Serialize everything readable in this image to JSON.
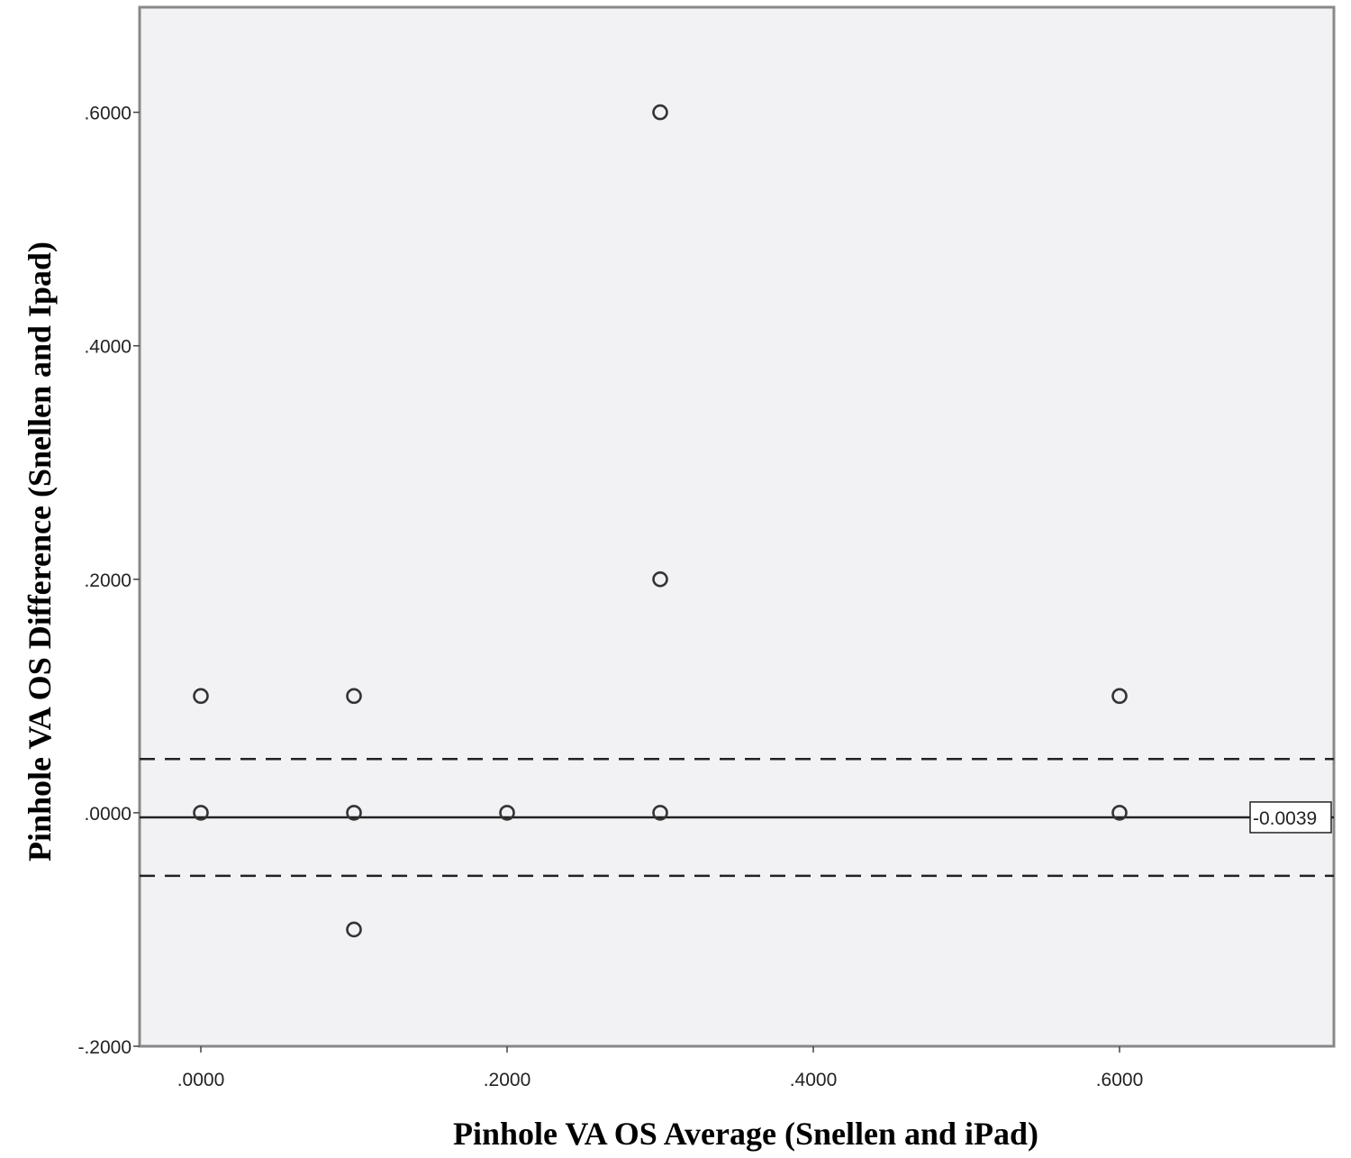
{
  "chart_data": {
    "type": "scatter",
    "title": "",
    "xlabel": "Pinhole VA OS Average (Snellen and iPad)",
    "ylabel": "Pinhole VA OS Difference (Snellen and Ipad)",
    "xlim": [
      -0.04,
      0.74
    ],
    "ylim": [
      -0.2,
      0.69
    ],
    "x_ticks": [
      0.0,
      0.2,
      0.4,
      0.6
    ],
    "x_tick_labels": [
      ".0000",
      ".2000",
      ".4000",
      ".6000"
    ],
    "y_ticks": [
      -0.2,
      0.0,
      0.2,
      0.4,
      0.6
    ],
    "y_tick_labels": [
      "-.2000",
      ".0000",
      ".2000",
      ".4000",
      ".6000"
    ],
    "grid": false,
    "points": [
      {
        "x": 0.0,
        "y": 0.1
      },
      {
        "x": 0.0,
        "y": 0.0
      },
      {
        "x": 0.1,
        "y": 0.1
      },
      {
        "x": 0.1,
        "y": 0.0
      },
      {
        "x": 0.1,
        "y": -0.1
      },
      {
        "x": 0.2,
        "y": 0.0
      },
      {
        "x": 0.3,
        "y": 0.6
      },
      {
        "x": 0.3,
        "y": 0.2
      },
      {
        "x": 0.3,
        "y": 0.0
      },
      {
        "x": 0.6,
        "y": 0.1
      },
      {
        "x": 0.6,
        "y": 0.0
      }
    ],
    "reference_lines": [
      {
        "y": -0.0039,
        "style": "solid",
        "label": "-0.0039"
      },
      {
        "y": 0.046,
        "style": "dashed"
      },
      {
        "y": -0.054,
        "style": "dashed"
      }
    ],
    "colors": {
      "plot_background": "#f2f2f4",
      "frame": "#888888",
      "marker": "#333333",
      "line": "#222222"
    }
  }
}
